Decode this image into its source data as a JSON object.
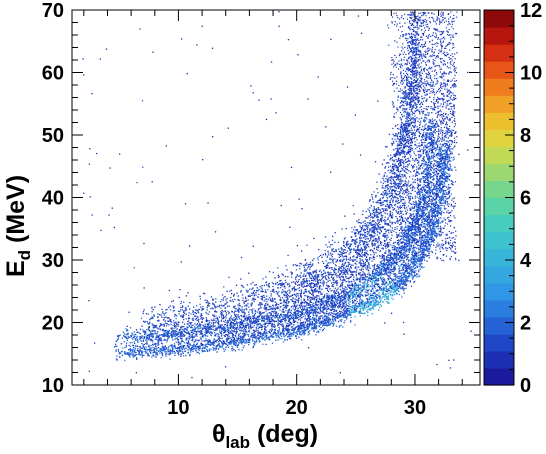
{
  "chart_data": {
    "type": "heatmap",
    "xlabel": {
      "main": "θ",
      "sub": "lab",
      "unit": " (deg)"
    },
    "ylabel": {
      "main": "E",
      "sub": "d",
      "unit": " (MeV)"
    },
    "xlim": [
      1,
      35.5
    ],
    "ylim": [
      10,
      70
    ],
    "x_ticks": [
      {
        "value": 10,
        "label": "10"
      },
      {
        "value": 20,
        "label": "20"
      },
      {
        "value": 30,
        "label": "30"
      }
    ],
    "y_ticks": [
      {
        "value": 10,
        "label": "10"
      },
      {
        "value": 20,
        "label": "20"
      },
      {
        "value": 30,
        "label": "30"
      },
      {
        "value": 40,
        "label": "40"
      },
      {
        "value": 50,
        "label": "50"
      },
      {
        "value": 60,
        "label": "60"
      },
      {
        "value": 70,
        "label": "70"
      }
    ],
    "colorbar": {
      "range": [
        0,
        12
      ],
      "ticks": [
        {
          "value": 0,
          "label": "0"
        },
        {
          "value": 2,
          "label": "2"
        },
        {
          "value": 4,
          "label": "4"
        },
        {
          "value": 6,
          "label": "6"
        },
        {
          "value": 8,
          "label": "8"
        },
        {
          "value": 10,
          "label": "10"
        },
        {
          "value": 12,
          "label": "12"
        }
      ],
      "colors": [
        "#1b1a9c",
        "#1d2fb5",
        "#1f47c8",
        "#2562d6",
        "#2b7ee0",
        "#2f97e6",
        "#34a6e0",
        "#38b5d9",
        "#3cc3cf",
        "#46cdbe",
        "#5ad3a8",
        "#76d68e",
        "#9bd872",
        "#c2d958",
        "#e0d33f",
        "#ecbf2f",
        "#f0a026",
        "#ef7d1e",
        "#e75518",
        "#d53013",
        "#b7160e",
        "#8e0a0a"
      ]
    },
    "series": [
      {
        "band_points": [
          {
            "theta": 5,
            "E": 15.2
          },
          {
            "theta": 10,
            "E": 15.8
          },
          {
            "theta": 15,
            "E": 17.0
          },
          {
            "theta": 20,
            "E": 18.8
          },
          {
            "theta": 24,
            "E": 21.2
          },
          {
            "theta": 27,
            "E": 24.0
          },
          {
            "theta": 29,
            "E": 27.0
          },
          {
            "theta": 30.5,
            "E": 31.0
          },
          {
            "theta": 31.5,
            "E": 36.0
          },
          {
            "theta": 32.2,
            "E": 42.0
          },
          {
            "theta": 32.5,
            "E": 48.0
          }
        ]
      },
      {
        "band_points": [
          {
            "theta": 5,
            "E": 17.8
          },
          {
            "theta": 10,
            "E": 18.2
          },
          {
            "theta": 15,
            "E": 19.5
          },
          {
            "theta": 20,
            "E": 21.5
          },
          {
            "theta": 24,
            "E": 24.0
          },
          {
            "theta": 27,
            "E": 28.0
          },
          {
            "theta": 29,
            "E": 32.0
          },
          {
            "theta": 30.3,
            "E": 37.0
          },
          {
            "theta": 31.0,
            "E": 44.0
          },
          {
            "theta": 31.3,
            "E": 52.0
          }
        ]
      },
      {
        "band_points": [
          {
            "theta": 7,
            "E": 19.5
          },
          {
            "theta": 12,
            "E": 21.0
          },
          {
            "theta": 17,
            "E": 23.5
          },
          {
            "theta": 21,
            "E": 26.5
          },
          {
            "theta": 24,
            "E": 30.0
          },
          {
            "theta": 26,
            "E": 34.0
          },
          {
            "theta": 27.5,
            "E": 39.0
          },
          {
            "theta": 28.5,
            "E": 45.0
          },
          {
            "theta": 29.3,
            "E": 52.0
          },
          {
            "theta": 29.8,
            "E": 60.0
          },
          {
            "theta": 30.2,
            "E": 70.0
          }
        ]
      }
    ],
    "hotspot": {
      "theta": 26.5,
      "E": 23.5
    },
    "grid": false,
    "legend": "colorbar-right"
  }
}
